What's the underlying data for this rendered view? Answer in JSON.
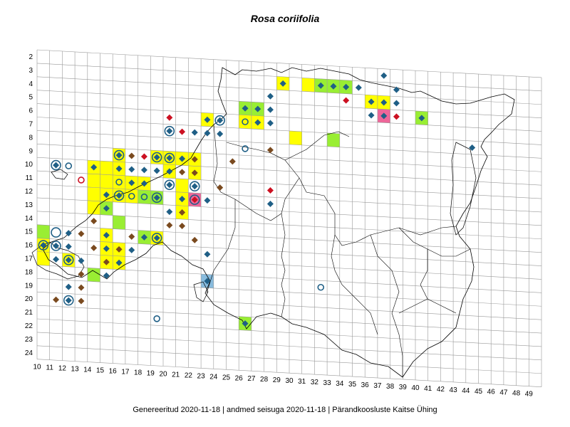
{
  "title": "Rosa coriifolia",
  "footer": "Genereeritud 2020-11-18  |  andmed seisuga 2020-11-18  |  Pärandkoosluste Kaitse Ühing",
  "colors": {
    "yellow": "#ffff00",
    "green": "#99ee33",
    "pink": "#ee6699",
    "blue": "#88bbdd",
    "marker_blue": "#1f5f86",
    "marker_brown": "#7a4a1f",
    "marker_red": "#cc1122",
    "grid": "#999999",
    "boundary": "#000000"
  },
  "row_labels": [
    "2",
    "3",
    "4",
    "5",
    "6",
    "7",
    "8",
    "9",
    "10",
    "11",
    "12",
    "13",
    "14",
    "15",
    "16",
    "17",
    "18",
    "19",
    "20",
    "21",
    "22",
    "23",
    "24"
  ],
  "col_labels": [
    "10",
    "11",
    "12",
    "13",
    "14",
    "15",
    "16",
    "17",
    "18",
    "19",
    "20",
    "21",
    "22",
    "23",
    "24",
    "25",
    "26",
    "27",
    "28",
    "29",
    "30",
    "31",
    "32",
    "33",
    "34",
    "35",
    "36",
    "37",
    "38",
    "39",
    "40",
    "41",
    "42",
    "43",
    "44",
    "45",
    "46",
    "47",
    "48",
    "49"
  ],
  "cells": [
    {
      "col": 29,
      "row": 3,
      "color": "yellow"
    },
    {
      "col": 31,
      "row": 3,
      "color": "yellow"
    },
    {
      "col": 32,
      "row": 3,
      "color": "green"
    },
    {
      "col": 33,
      "row": 3,
      "color": "green"
    },
    {
      "col": 34,
      "row": 3,
      "color": "green"
    },
    {
      "col": 36,
      "row": 4,
      "color": "yellow"
    },
    {
      "col": 37,
      "row": 4,
      "color": "yellow"
    },
    {
      "col": 37,
      "row": 5,
      "color": "pink"
    },
    {
      "col": 40,
      "row": 5,
      "color": "green"
    },
    {
      "col": 26,
      "row": 5,
      "color": "green"
    },
    {
      "col": 27,
      "row": 5,
      "color": "green"
    },
    {
      "col": 23,
      "row": 6,
      "color": "yellow"
    },
    {
      "col": 26,
      "row": 6,
      "color": "yellow"
    },
    {
      "col": 27,
      "row": 6,
      "color": "yellow"
    },
    {
      "col": 30,
      "row": 7,
      "color": "yellow"
    },
    {
      "col": 33,
      "row": 7,
      "color": "green"
    },
    {
      "col": 16,
      "row": 9,
      "color": "yellow"
    },
    {
      "col": 19,
      "row": 9,
      "color": "yellow"
    },
    {
      "col": 20,
      "row": 9,
      "color": "yellow"
    },
    {
      "col": 21,
      "row": 9,
      "color": "yellow"
    },
    {
      "col": 22,
      "row": 9,
      "color": "yellow"
    },
    {
      "col": 14,
      "row": 10,
      "color": "yellow"
    },
    {
      "col": 15,
      "row": 10,
      "color": "yellow"
    },
    {
      "col": 16,
      "row": 10,
      "color": "yellow"
    },
    {
      "col": 20,
      "row": 10,
      "color": "yellow"
    },
    {
      "col": 22,
      "row": 10,
      "color": "yellow"
    },
    {
      "col": 14,
      "row": 11,
      "color": "yellow"
    },
    {
      "col": 15,
      "row": 11,
      "color": "yellow"
    },
    {
      "col": 16,
      "row": 11,
      "color": "yellow"
    },
    {
      "col": 17,
      "row": 11,
      "color": "yellow"
    },
    {
      "col": 18,
      "row": 11,
      "color": "yellow"
    },
    {
      "col": 21,
      "row": 11,
      "color": "yellow"
    },
    {
      "col": 14,
      "row": 12,
      "color": "yellow"
    },
    {
      "col": 15,
      "row": 12,
      "color": "yellow"
    },
    {
      "col": 16,
      "row": 12,
      "color": "yellow"
    },
    {
      "col": 17,
      "row": 12,
      "color": "yellow"
    },
    {
      "col": 18,
      "row": 12,
      "color": "green"
    },
    {
      "col": 19,
      "row": 12,
      "color": "green"
    },
    {
      "col": 21,
      "row": 12,
      "color": "yellow"
    },
    {
      "col": 22,
      "row": 12,
      "color": "pink"
    },
    {
      "col": 14,
      "row": 13,
      "color": "yellow"
    },
    {
      "col": 15,
      "row": 13,
      "color": "green"
    },
    {
      "col": 21,
      "row": 13,
      "color": "yellow"
    },
    {
      "col": 16,
      "row": 14,
      "color": "green"
    },
    {
      "col": 10,
      "row": 15,
      "color": "green"
    },
    {
      "col": 15,
      "row": 15,
      "color": "yellow"
    },
    {
      "col": 18,
      "row": 15,
      "color": "green"
    },
    {
      "col": 19,
      "row": 15,
      "color": "yellow"
    },
    {
      "col": 10,
      "row": 16,
      "color": "yellow"
    },
    {
      "col": 15,
      "row": 16,
      "color": "yellow"
    },
    {
      "col": 16,
      "row": 16,
      "color": "yellow"
    },
    {
      "col": 10,
      "row": 17,
      "color": "yellow"
    },
    {
      "col": 12,
      "row": 17,
      "color": "yellow"
    },
    {
      "col": 15,
      "row": 17,
      "color": "yellow"
    },
    {
      "col": 16,
      "row": 17,
      "color": "yellow"
    },
    {
      "col": 14,
      "row": 18,
      "color": "green"
    },
    {
      "col": 23,
      "row": 18,
      "color": "blue"
    },
    {
      "col": 26,
      "row": 21,
      "color": "green"
    }
  ],
  "markers": [
    {
      "col": 29,
      "row": 3,
      "type": "diamond",
      "color": "marker_blue"
    },
    {
      "col": 32,
      "row": 3,
      "type": "diamond",
      "color": "marker_blue"
    },
    {
      "col": 33,
      "row": 3,
      "type": "diamond",
      "color": "marker_blue"
    },
    {
      "col": 34,
      "row": 3,
      "type": "diamond",
      "color": "marker_blue"
    },
    {
      "col": 35,
      "row": 3,
      "type": "diamond",
      "color": "marker_blue"
    },
    {
      "col": 37,
      "row": 2,
      "type": "diamond",
      "color": "marker_blue"
    },
    {
      "col": 38,
      "row": 3,
      "type": "diamond",
      "color": "marker_blue"
    },
    {
      "col": 34,
      "row": 4,
      "type": "diamond",
      "color": "marker_red"
    },
    {
      "col": 36,
      "row": 4,
      "type": "diamond",
      "color": "marker_blue"
    },
    {
      "col": 37,
      "row": 4,
      "type": "diamond",
      "color": "marker_blue"
    },
    {
      "col": 38,
      "row": 4,
      "type": "diamond",
      "color": "marker_blue"
    },
    {
      "col": 28,
      "row": 4,
      "type": "diamond",
      "color": "marker_blue"
    },
    {
      "col": 26,
      "row": 5,
      "type": "diamond",
      "color": "marker_blue"
    },
    {
      "col": 27,
      "row": 5,
      "type": "diamond",
      "color": "marker_blue"
    },
    {
      "col": 28,
      "row": 5,
      "type": "diamond",
      "color": "marker_blue"
    },
    {
      "col": 36,
      "row": 5,
      "type": "diamond",
      "color": "marker_blue"
    },
    {
      "col": 37,
      "row": 5,
      "type": "diamond",
      "color": "marker_blue"
    },
    {
      "col": 38,
      "row": 5,
      "type": "diamond",
      "color": "marker_red"
    },
    {
      "col": 40,
      "row": 5,
      "type": "diamond",
      "color": "marker_blue"
    },
    {
      "col": 20,
      "row": 6,
      "type": "diamond",
      "color": "marker_red"
    },
    {
      "col": 23,
      "row": 6,
      "type": "diamond",
      "color": "marker_blue"
    },
    {
      "col": 24,
      "row": 6,
      "type": "diamond",
      "color": "marker_blue"
    },
    {
      "col": 26,
      "row": 6,
      "type": "circle",
      "color": "marker_blue"
    },
    {
      "col": 27,
      "row": 6,
      "type": "diamond",
      "color": "marker_blue"
    },
    {
      "col": 28,
      "row": 6,
      "type": "diamond",
      "color": "marker_blue"
    },
    {
      "col": 20,
      "row": 7,
      "type": "diamond",
      "color": "marker_blue"
    },
    {
      "col": 21,
      "row": 7,
      "type": "diamond",
      "color": "marker_red"
    },
    {
      "col": 22,
      "row": 7,
      "type": "diamond",
      "color": "marker_blue"
    },
    {
      "col": 23,
      "row": 7,
      "type": "diamond",
      "color": "marker_blue"
    },
    {
      "col": 24,
      "row": 7,
      "type": "diamond",
      "color": "marker_blue"
    },
    {
      "col": 44,
      "row": 7,
      "type": "diamond",
      "color": "marker_blue"
    },
    {
      "col": 26,
      "row": 8,
      "type": "circle",
      "color": "marker_blue"
    },
    {
      "col": 28,
      "row": 8,
      "type": "diamond",
      "color": "marker_brown"
    },
    {
      "col": 16,
      "row": 9,
      "type": "diamond",
      "color": "marker_blue"
    },
    {
      "col": 17,
      "row": 9,
      "type": "diamond",
      "color": "marker_brown"
    },
    {
      "col": 18,
      "row": 9,
      "type": "diamond",
      "color": "marker_red"
    },
    {
      "col": 19,
      "row": 9,
      "type": "diamond",
      "color": "marker_blue"
    },
    {
      "col": 20,
      "row": 9,
      "type": "diamond",
      "color": "marker_blue"
    },
    {
      "col": 21,
      "row": 9,
      "type": "diamond",
      "color": "marker_blue"
    },
    {
      "col": 22,
      "row": 9,
      "type": "diamond",
      "color": "marker_brown"
    },
    {
      "col": 25,
      "row": 9,
      "type": "diamond",
      "color": "marker_brown"
    },
    {
      "col": 11,
      "row": 10,
      "type": "diamond",
      "color": "marker_blue"
    },
    {
      "col": 12,
      "row": 10,
      "type": "circle",
      "color": "marker_blue"
    },
    {
      "col": 14,
      "row": 10,
      "type": "diamond",
      "color": "marker_blue"
    },
    {
      "col": 16,
      "row": 10,
      "type": "diamond",
      "color": "marker_blue"
    },
    {
      "col": 17,
      "row": 10,
      "type": "diamond",
      "color": "marker_blue"
    },
    {
      "col": 18,
      "row": 10,
      "type": "diamond",
      "color": "marker_blue"
    },
    {
      "col": 19,
      "row": 10,
      "type": "diamond",
      "color": "marker_blue"
    },
    {
      "col": 20,
      "row": 10,
      "type": "diamond",
      "color": "marker_blue"
    },
    {
      "col": 21,
      "row": 10,
      "type": "diamond",
      "color": "marker_brown"
    },
    {
      "col": 22,
      "row": 10,
      "type": "diamond",
      "color": "marker_brown"
    },
    {
      "col": 13,
      "row": 11,
      "type": "circle",
      "color": "marker_red"
    },
    {
      "col": 16,
      "row": 11,
      "type": "circle",
      "color": "marker_blue"
    },
    {
      "col": 17,
      "row": 11,
      "type": "diamond",
      "color": "marker_blue"
    },
    {
      "col": 18,
      "row": 11,
      "type": "diamond",
      "color": "marker_blue"
    },
    {
      "col": 20,
      "row": 11,
      "type": "diamond",
      "color": "marker_blue"
    },
    {
      "col": 22,
      "row": 11,
      "type": "diamond",
      "color": "marker_blue"
    },
    {
      "col": 24,
      "row": 11,
      "type": "diamond",
      "color": "marker_brown"
    },
    {
      "col": 28,
      "row": 11,
      "type": "diamond",
      "color": "marker_red"
    },
    {
      "col": 15,
      "row": 12,
      "type": "diamond",
      "color": "marker_blue"
    },
    {
      "col": 16,
      "row": 12,
      "type": "diamond",
      "color": "marker_blue"
    },
    {
      "col": 17,
      "row": 12,
      "type": "circle",
      "color": "marker_blue"
    },
    {
      "col": 18,
      "row": 12,
      "type": "circle",
      "color": "marker_blue"
    },
    {
      "col": 19,
      "row": 12,
      "type": "diamond",
      "color": "marker_blue"
    },
    {
      "col": 21,
      "row": 12,
      "type": "diamond",
      "color": "marker_blue"
    },
    {
      "col": 22,
      "row": 12,
      "type": "diamond",
      "color": "marker_red"
    },
    {
      "col": 23,
      "row": 12,
      "type": "diamond",
      "color": "marker_blue"
    },
    {
      "col": 28,
      "row": 12,
      "type": "diamond",
      "color": "marker_blue"
    },
    {
      "col": 15,
      "row": 13,
      "type": "diamond",
      "color": "marker_blue"
    },
    {
      "col": 20,
      "row": 13,
      "type": "diamond",
      "color": "marker_blue"
    },
    {
      "col": 21,
      "row": 13,
      "type": "diamond",
      "color": "marker_brown"
    },
    {
      "col": 14,
      "row": 14,
      "type": "diamond",
      "color": "marker_brown"
    },
    {
      "col": 20,
      "row": 14,
      "type": "diamond",
      "color": "marker_brown"
    },
    {
      "col": 21,
      "row": 14,
      "type": "diamond",
      "color": "marker_brown"
    },
    {
      "col": 12,
      "row": 15,
      "type": "diamond",
      "color": "marker_blue"
    },
    {
      "col": 13,
      "row": 15,
      "type": "diamond",
      "color": "marker_brown"
    },
    {
      "col": 15,
      "row": 15,
      "type": "diamond",
      "color": "marker_blue"
    },
    {
      "col": 17,
      "row": 15,
      "type": "diamond",
      "color": "marker_brown"
    },
    {
      "col": 18,
      "row": 15,
      "type": "diamond",
      "color": "marker_blue"
    },
    {
      "col": 19,
      "row": 15,
      "type": "diamond",
      "color": "marker_blue"
    },
    {
      "col": 22,
      "row": 15,
      "type": "diamond",
      "color": "marker_brown"
    },
    {
      "col": 10,
      "row": 16,
      "type": "diamond",
      "color": "marker_blue"
    },
    {
      "col": 11,
      "row": 16,
      "type": "diamond",
      "color": "marker_blue"
    },
    {
      "col": 12,
      "row": 16,
      "type": "diamond",
      "color": "marker_blue"
    },
    {
      "col": 14,
      "row": 16,
      "type": "diamond",
      "color": "marker_brown"
    },
    {
      "col": 15,
      "row": 16,
      "type": "diamond",
      "color": "marker_blue"
    },
    {
      "col": 16,
      "row": 16,
      "type": "diamond",
      "color": "marker_brown"
    },
    {
      "col": 17,
      "row": 16,
      "type": "diamond",
      "color": "marker_blue"
    },
    {
      "col": 23,
      "row": 16,
      "type": "diamond",
      "color": "marker_blue"
    },
    {
      "col": 11,
      "row": 17,
      "type": "diamond",
      "color": "marker_blue"
    },
    {
      "col": 12,
      "row": 17,
      "type": "diamond",
      "color": "marker_blue"
    },
    {
      "col": 13,
      "row": 17,
      "type": "diamond",
      "color": "marker_blue"
    },
    {
      "col": 15,
      "row": 17,
      "type": "diamond",
      "color": "marker_brown"
    },
    {
      "col": 16,
      "row": 17,
      "type": "diamond",
      "color": "marker_blue"
    },
    {
      "col": 13,
      "row": 18,
      "type": "diamond",
      "color": "marker_brown"
    },
    {
      "col": 15,
      "row": 18,
      "type": "diamond",
      "color": "marker_blue"
    },
    {
      "col": 23,
      "row": 18,
      "type": "diamond",
      "color": "marker_blue"
    },
    {
      "col": 32,
      "row": 18,
      "type": "circle",
      "color": "marker_blue"
    },
    {
      "col": 12,
      "row": 19,
      "type": "diamond",
      "color": "marker_blue"
    },
    {
      "col": 13,
      "row": 19,
      "type": "diamond",
      "color": "marker_brown"
    },
    {
      "col": 11,
      "row": 20,
      "type": "diamond",
      "color": "marker_brown"
    },
    {
      "col": 12,
      "row": 20,
      "type": "diamond",
      "color": "marker_blue"
    },
    {
      "col": 13,
      "row": 20,
      "type": "diamond",
      "color": "marker_brown"
    },
    {
      "col": 19,
      "row": 21,
      "type": "circle",
      "color": "marker_blue"
    },
    {
      "col": 26,
      "row": 21,
      "type": "diamond",
      "color": "marker_blue"
    }
  ],
  "rings": [
    {
      "col": 16,
      "row": 9
    },
    {
      "col": 19,
      "row": 9
    },
    {
      "col": 20,
      "row": 9
    },
    {
      "col": 24,
      "row": 6
    },
    {
      "col": 20,
      "row": 7
    },
    {
      "col": 11,
      "row": 10
    },
    {
      "col": 16,
      "row": 12
    },
    {
      "col": 19,
      "row": 12
    },
    {
      "col": 20,
      "row": 11
    },
    {
      "col": 22,
      "row": 11
    },
    {
      "col": 22,
      "row": 12
    },
    {
      "col": 10,
      "row": 16
    },
    {
      "col": 11,
      "row": 15
    },
    {
      "col": 11,
      "row": 16
    },
    {
      "col": 12,
      "row": 17
    },
    {
      "col": 12,
      "row": 20
    },
    {
      "col": 19,
      "row": 15
    }
  ]
}
